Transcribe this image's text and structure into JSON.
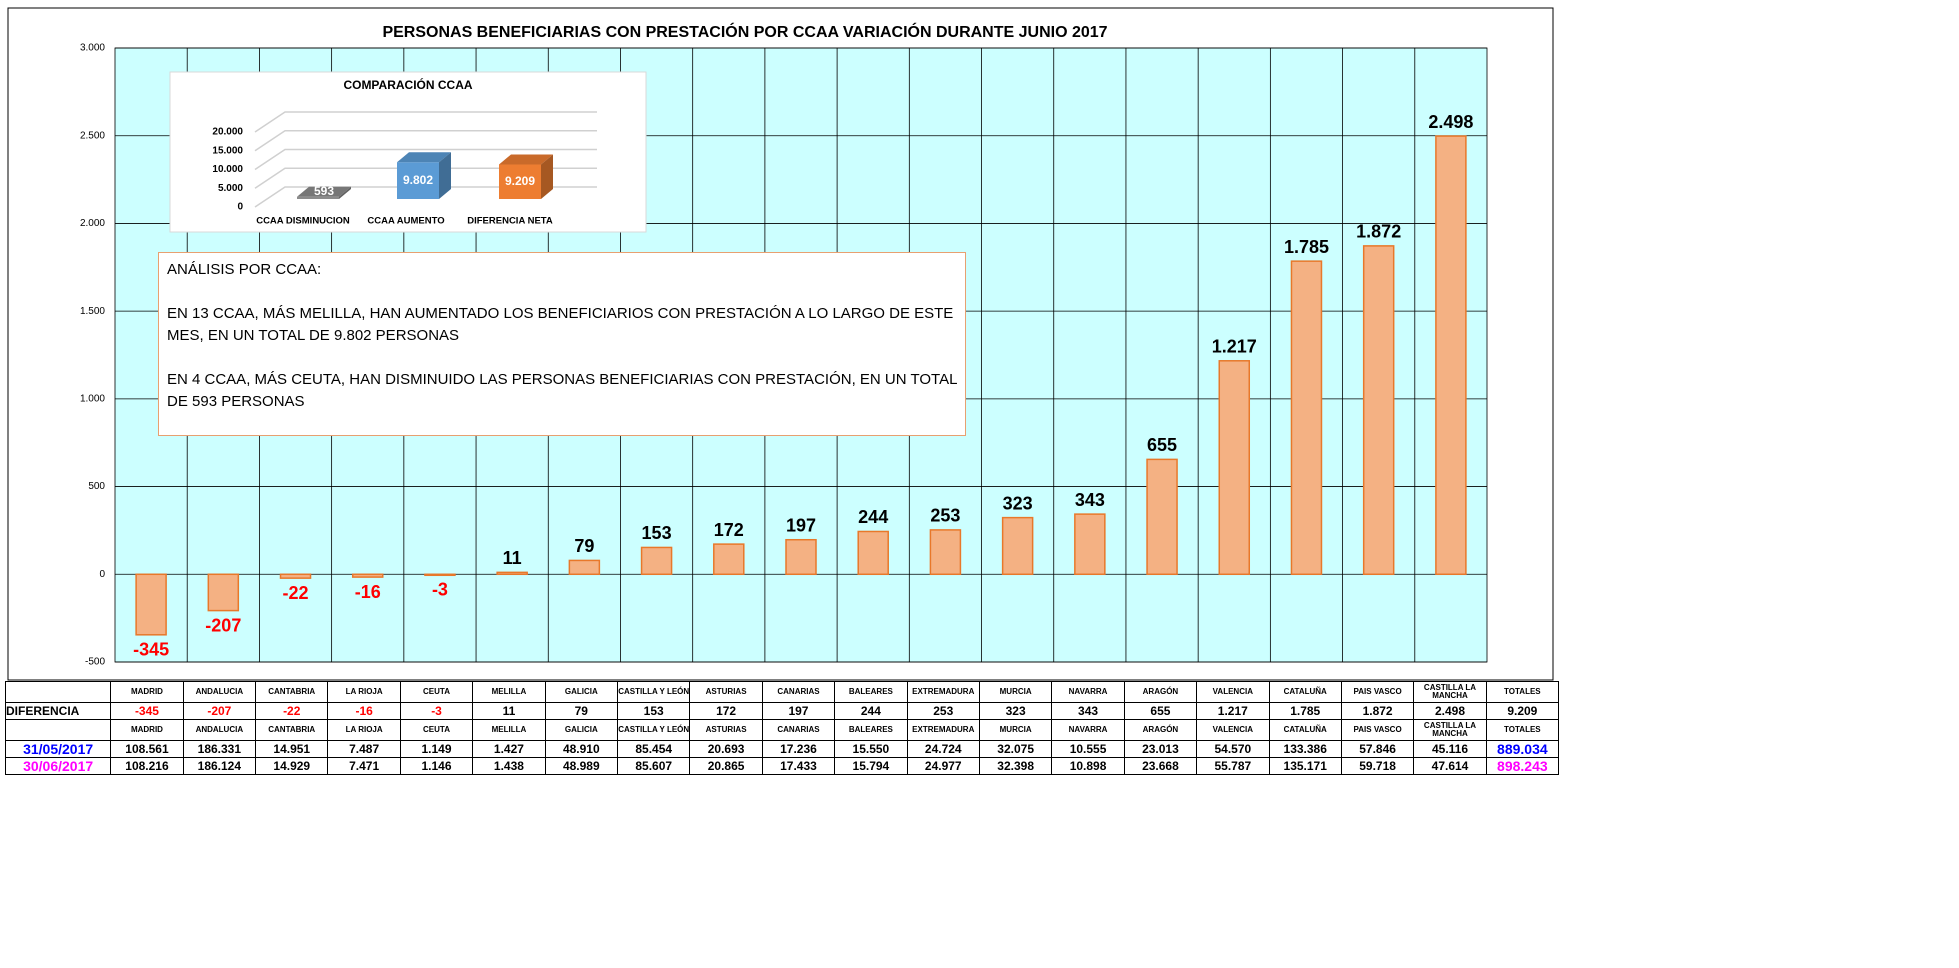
{
  "chart_data": [
    {
      "type": "bar",
      "title": "PERSONAS BENEFICIARIAS CON PRESTACIÓN POR CCAA VARIACIÓN DURANTE JUNIO 2017",
      "categories": [
        "MADRID",
        "ANDALUCIA",
        "CANTABRIA",
        "LA RIOJA",
        "CEUTA",
        "MELILLA",
        "GALICIA",
        "CASTILLA Y LEÓN",
        "ASTURIAS",
        "CANARIAS",
        "BALEARES",
        "EXTREMADURA",
        "MURCIA",
        "NAVARRA",
        "ARAGÓN",
        "VALENCIA",
        "CATALUÑA",
        "PAIS VASCO",
        "CASTILLA LA MANCHA"
      ],
      "values": [
        -345,
        -207,
        -22,
        -16,
        -3,
        11,
        79,
        153,
        172,
        197,
        244,
        253,
        323,
        343,
        655,
        1217,
        1785,
        1872,
        2498
      ],
      "value_labels": [
        "-345",
        "-207",
        "-22",
        "-16",
        "-3",
        "11",
        "79",
        "153",
        "172",
        "197",
        "244",
        "253",
        "323",
        "343",
        "655",
        "1.217",
        "1.785",
        "1.872",
        "2.498"
      ],
      "color": "#f4b183",
      "edge_color": "#e8782a",
      "negative_label_color": "#ff0000",
      "background": "#ccffff",
      "ylim": [
        -500,
        3000
      ],
      "yticks": [
        -500,
        0,
        500,
        {
          "value": 1000,
          "label": "1.000"
        },
        {
          "value": 1500,
          "label": "1.500"
        },
        {
          "value": 2000,
          "label": "2.000"
        },
        {
          "value": 2500,
          "label": "2.500"
        },
        {
          "value": 3000,
          "label": "3.000"
        }
      ],
      "grid": true
    },
    {
      "type": "bar3d",
      "title": "COMPARACIÓN CCAA",
      "categories": [
        "CCAA DISMINUCION",
        "CCAA AUMENTO",
        "DIFERENCIA NETA"
      ],
      "values": [
        593,
        9802,
        9209
      ],
      "value_labels": [
        "593",
        "9.802",
        "9.209"
      ],
      "colors": [
        "#8c8c8c",
        "#5b9bd5",
        "#ed7d31"
      ],
      "ylim": [
        0,
        20000
      ],
      "yticks": [
        0,
        {
          "value": 5000,
          "label": "5.000"
        },
        {
          "value": 10000,
          "label": "10.000"
        },
        {
          "value": 15000,
          "label": "15.000"
        },
        {
          "value": 20000,
          "label": "20.000"
        }
      ]
    }
  ],
  "text_box": {
    "heading": "ANÁLISIS POR CCAA:",
    "paragraphs": [
      "EN 13 CCAA, MÁS MELILLA, HAN AUMENTADO LOS BENEFICIARIOS CON PRESTACIÓN A LO LARGO DE ESTE MES, EN UN TOTAL DE  9.802 PERSONAS",
      "EN 4 CCAA, MÁS CEUTA, HAN DISMINUIDO LAS PERSONAS BENEFICIARIAS CON PRESTACIÓN, EN UN TOTAL DE 593 PERSONAS"
    ]
  },
  "table": {
    "total_header": "TOTALES",
    "diff_label": "DIFERENCIA",
    "diff_total": "9.209",
    "rows": [
      {
        "label": "31/05/2017",
        "color": "#0000ff",
        "cells": [
          "108.561",
          "186.331",
          "14.951",
          "7.487",
          "1.149",
          "1.427",
          "48.910",
          "85.454",
          "20.693",
          "17.236",
          "15.550",
          "24.724",
          "32.075",
          "10.555",
          "23.013",
          "54.570",
          "133.386",
          "57.846",
          "45.116"
        ],
        "total": "889.034"
      },
      {
        "label": "30/06/2017",
        "color": "#ff00ff",
        "cells": [
          "108.216",
          "186.124",
          "14.929",
          "7.471",
          "1.146",
          "1.438",
          "48.989",
          "85.607",
          "20.865",
          "17.433",
          "15.794",
          "24.977",
          "32.398",
          "10.898",
          "23.668",
          "55.787",
          "135.171",
          "59.718",
          "47.614"
        ],
        "total": "898.243"
      }
    ]
  }
}
